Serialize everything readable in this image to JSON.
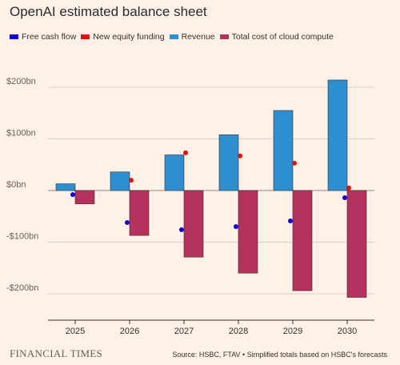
{
  "chart_data": {
    "type": "bar",
    "title": "OpenAI estimated balance sheet",
    "categories": [
      "2025",
      "2026",
      "2027",
      "2028",
      "2029",
      "2030"
    ],
    "ylim": [
      -250,
      250
    ],
    "yticks": [
      200,
      100,
      0,
      -100,
      -200
    ],
    "ytick_labels": [
      "$200bn",
      "$100bn",
      "$0bn",
      "-$100bn",
      "-$200bn"
    ],
    "grid": true,
    "legend_position": "top-left",
    "series": [
      {
        "name": "Free cash flow",
        "mark": "dot",
        "color": "#0f00d6",
        "values": [
          -8,
          -62,
          -76,
          -70,
          -59,
          -14
        ]
      },
      {
        "name": "New equity funding",
        "mark": "dot",
        "color": "#ea0d0d",
        "values": [
          null,
          20,
          73,
          67,
          53,
          5
        ]
      },
      {
        "name": "Revenue",
        "mark": "bar",
        "color": "#2e8fd0",
        "values": [
          13,
          36,
          69,
          108,
          155,
          214
        ]
      },
      {
        "name": "Total cost of cloud compute",
        "mark": "bar",
        "color": "#b5325f",
        "values": [
          -26,
          -87,
          -129,
          -160,
          -194,
          -207
        ]
      }
    ]
  },
  "footer": {
    "brand": "FINANCIAL TIMES",
    "source": "Source: HSBC, FTAV • Simplified totals based on HSBC's forecasts"
  }
}
